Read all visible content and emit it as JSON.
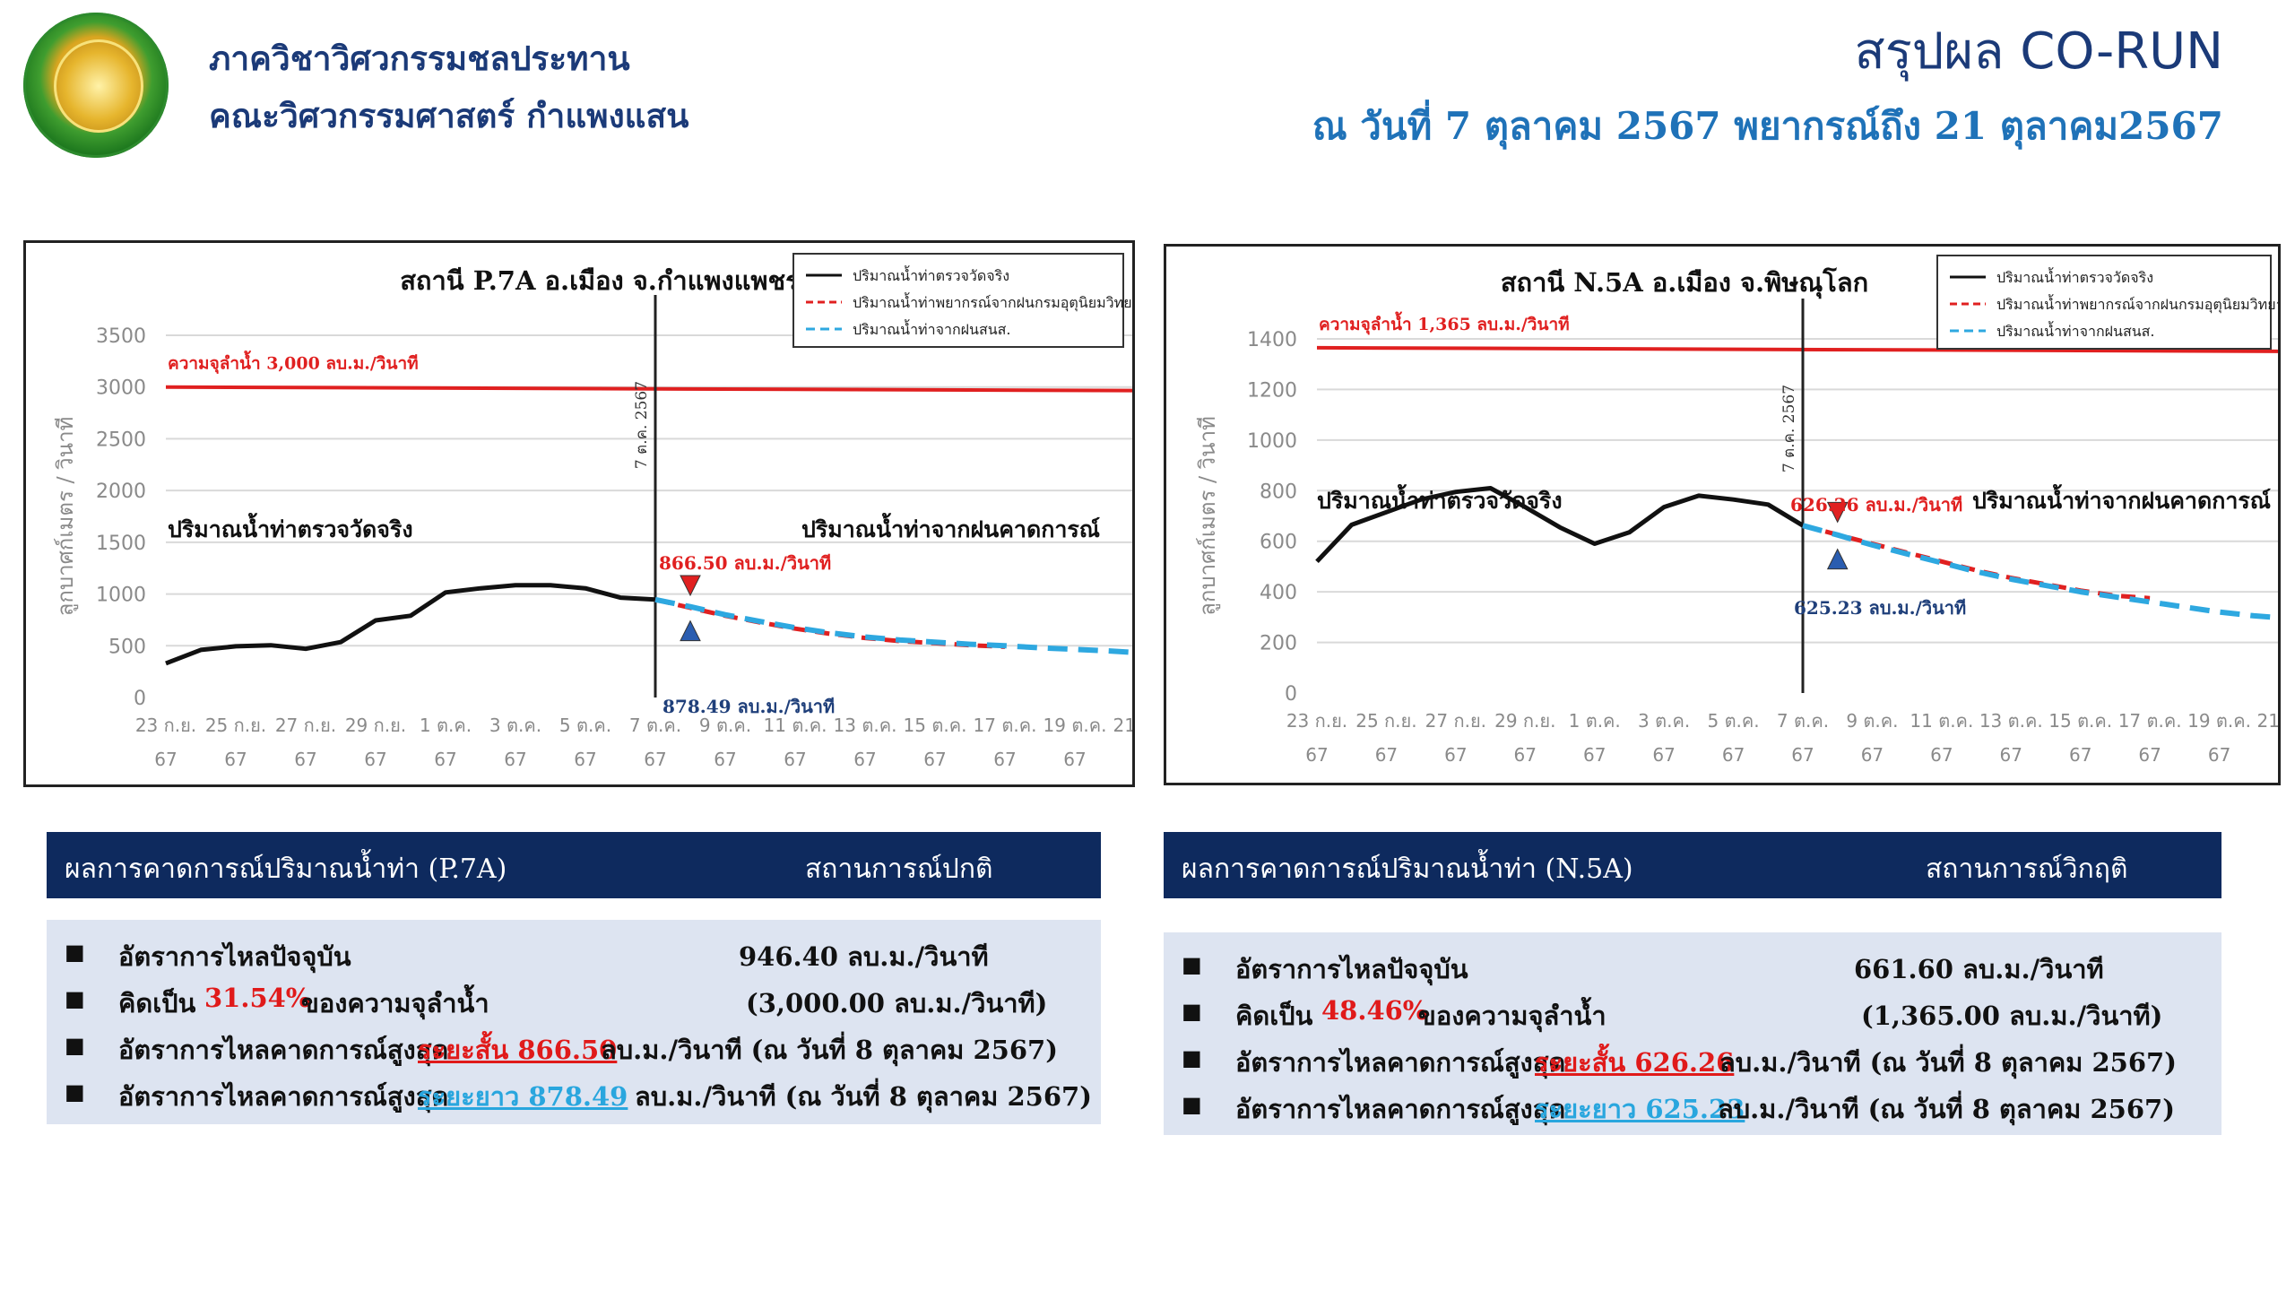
{
  "header": {
    "dept": "ภาควิชาวิศวกรรมชลประทาน",
    "faculty": "คณะวิศวกรรมศาสตร์ กำแพงแสน",
    "title": "สรุปผล CO-RUN",
    "date_line": "ณ วันที่ 7 ตุลาคม 2567 พยากรณ์ถึง 21 ตุลาคม2567"
  },
  "chart_data": [
    {
      "type": "line",
      "title": "สถานี P.7A อ.เมือง จ.กำแพงแพชร",
      "ylabel": "ลูกบาศก์เมตร / วินาที",
      "ylim": [
        0,
        3500
      ],
      "yticks": [
        "0",
        "500",
        "1000",
        "1500",
        "2000",
        "2500",
        "3000",
        "3500"
      ],
      "x_tick_labels": [
        "23 ก.ย.",
        "25 ก.ย.",
        "27 ก.ย.",
        "29 ก.ย.",
        "1 ต.ค.",
        "3 ต.ค.",
        "5 ต.ค.",
        "7 ต.ค.",
        "9 ต.ค.",
        "11 ต.ค.",
        "13 ต.ค.",
        "15 ต.ค.",
        "17 ต.ค.",
        "19 ต.ค.",
        "21 ต.ค."
      ],
      "x_tick_year": "67",
      "legend": [
        "ปริมาณน้ำท่าตรวจวัดจริง",
        "ปริมาณน้ำท่าพยากรณ์จากฝนกรมอุตุนิยมวิทยา",
        "ปริมาณน้ำท่าจากฝนสนส."
      ],
      "legend_position": "top-right",
      "capacity": 3000,
      "capacity_label": "ความจุลำน้ำ 3,000 ลบ.ม./วินาที",
      "vline_label": "7 ต.ค. 2567",
      "observed_label": "ปริมาณน้ำท่าตรวจวัดจริง",
      "forecast_label": "ปริมาณน้ำท่าจากฝนคาดการณ์",
      "peak_short_label": "866.50 ลบ.ม./วินาที",
      "peak_long_label": "878.49 ลบ.ม./วินาที",
      "series": [
        {
          "name": "ปริมาณน้ำท่าตรวจวัดจริง",
          "color": "#111111",
          "x": [
            0,
            1,
            2,
            3,
            4,
            5,
            6,
            7,
            8,
            9,
            10,
            11,
            12,
            13,
            14
          ],
          "y": [
            330,
            460,
            495,
            505,
            470,
            535,
            745,
            790,
            1015,
            1055,
            1085,
            1085,
            1055,
            965,
            946
          ]
        },
        {
          "name": "ปริมาณน้ำท่าพยากรณ์จากฝนกรมอุตุนิยมวิทยา",
          "color": "#e02020",
          "x": [
            14,
            15,
            16,
            17,
            18,
            19,
            20,
            21,
            22,
            23,
            24
          ],
          "y": [
            946,
            866,
            790,
            725,
            665,
            615,
            575,
            545,
            525,
            505,
            490
          ]
        },
        {
          "name": "ปริมาณน้ำท่าจากฝนสนส.",
          "color": "#2ea8e0",
          "x": [
            14,
            15,
            16,
            17,
            18,
            19,
            20,
            21,
            22,
            23,
            24,
            25,
            26,
            27,
            28
          ],
          "y": [
            946,
            878,
            800,
            735,
            675,
            625,
            585,
            555,
            535,
            515,
            500,
            480,
            465,
            450,
            430
          ]
        }
      ]
    },
    {
      "type": "line",
      "title": "สถานี N.5A อ.เมือง  จ.พิษณุโลก",
      "ylabel": "ลูกบาศก์เมตร / วินาที",
      "ylim": [
        0,
        1400
      ],
      "yticks": [
        "0",
        "200",
        "400",
        "600",
        "800",
        "1000",
        "1200",
        "1400"
      ],
      "x_tick_labels": [
        "23 ก.ย.",
        "25 ก.ย.",
        "27 ก.ย.",
        "29 ก.ย.",
        "1 ต.ค.",
        "3 ต.ค.",
        "5 ต.ค.",
        "7 ต.ค.",
        "9 ต.ค.",
        "11 ต.ค.",
        "13 ต.ค.",
        "15 ต.ค.",
        "17 ต.ค.",
        "19 ต.ค.",
        "21 ต.ค."
      ],
      "x_tick_year": "67",
      "legend": [
        "ปริมาณน้ำท่าตรวจวัดจริง",
        "ปริมาณน้ำท่าพยากรณ์จากฝนกรมอุตุนิยมวิทยา",
        "ปริมาณน้ำท่าจากฝนสนส."
      ],
      "legend_position": "top-right",
      "capacity": 1365,
      "capacity_label": "ความจุลำน้ำ 1,365 ลบ.ม./วินาที",
      "vline_label": "7 ต.ค. 2567",
      "observed_label": "ปริมาณน้ำท่าตรวจวัดจริง",
      "forecast_label": "ปริมาณน้ำท่าจากฝนคาดการณ์",
      "peak_short_label": "626.26 ลบ.ม./วินาที",
      "peak_long_label": "625.23 ลบ.ม./วินาที",
      "series": [
        {
          "name": "ปริมาณน้ำท่าตรวจวัดจริง",
          "color": "#111111",
          "x": [
            0,
            1,
            2,
            3,
            4,
            5,
            6,
            7,
            8,
            9,
            10,
            11,
            12,
            13,
            14
          ],
          "y": [
            520,
            665,
            715,
            765,
            795,
            810,
            735,
            655,
            590,
            635,
            735,
            780,
            765,
            745,
            662
          ]
        },
        {
          "name": "ปริมาณน้ำท่าพยากรณ์จากฝนกรมอุตุนิยมวิทยา",
          "color": "#e02020",
          "x": [
            14,
            15,
            16,
            17,
            18,
            19,
            20,
            21,
            22,
            23,
            24
          ],
          "y": [
            662,
            626,
            590,
            555,
            520,
            485,
            455,
            430,
            405,
            385,
            375
          ]
        },
        {
          "name": "ปริมาณน้ำท่าจากฝนสนส.",
          "color": "#2ea8e0",
          "x": [
            14,
            15,
            16,
            17,
            18,
            19,
            20,
            21,
            22,
            23,
            24,
            25,
            26,
            27,
            28
          ],
          "y": [
            662,
            625,
            585,
            550,
            515,
            480,
            450,
            425,
            400,
            380,
            360,
            340,
            320,
            305,
            295
          ]
        }
      ]
    }
  ],
  "panels": [
    {
      "head_left": "ผลการคาดการณ์ปริมาณน้ำท่า (P.7A)",
      "head_right": "สถานการณ์ปกติ",
      "bullet": "■",
      "r1_label": "อัตราการไหลปัจจุบัน",
      "r1_value": "946.40  ลบ.ม./วินาที",
      "r2_label": "คิดเป็น",
      "r2_pct": "31.54%",
      "r2_suffix": "ของความจุลำน้ำ",
      "r2_value": "(3,000.00  ลบ.ม./วินาที)",
      "r3_label": "อัตราการไหลคาดการณ์สูงสุด",
      "r3_val": "ระยะสั้น 866.50",
      "r3_tail": "ลบ.ม./วินาที (ณ วันที่ 8 ตุลาคม 2567)",
      "r4_label": "อัตราการไหลคาดการณ์สูงสุด",
      "r4_val": "ระยะยาว 878.49",
      "r4_tail": "ลบ.ม./วินาที (ณ วันที่ 8 ตุลาคม 2567)"
    },
    {
      "head_left": "ผลการคาดการณ์ปริมาณน้ำท่า (N.5A)",
      "head_right": "สถานการณ์วิกฤติ",
      "bullet": "■",
      "r1_label": "อัตราการไหลปัจจุบัน",
      "r1_value": "661.60  ลบ.ม./วินาที",
      "r2_label": "คิดเป็น",
      "r2_pct": "48.46%",
      "r2_suffix": "ของความจุลำน้ำ",
      "r2_value": "(1,365.00  ลบ.ม./วินาที)",
      "r3_label": "อัตราการไหลคาดการณ์สูงสุด",
      "r3_val": "ระยะสั้น 626.26",
      "r3_tail": "ลบ.ม./วินาที (ณ วันที่ 8 ตุลาคม 2567)",
      "r4_label": "อัตราการไหลคาดการณ์สูงสุด",
      "r4_val": "ระยะยาว 625.23",
      "r4_tail": "ลบ.ม./วินาที (ณ วันที่ 8 ตุลาคม 2567)"
    }
  ]
}
